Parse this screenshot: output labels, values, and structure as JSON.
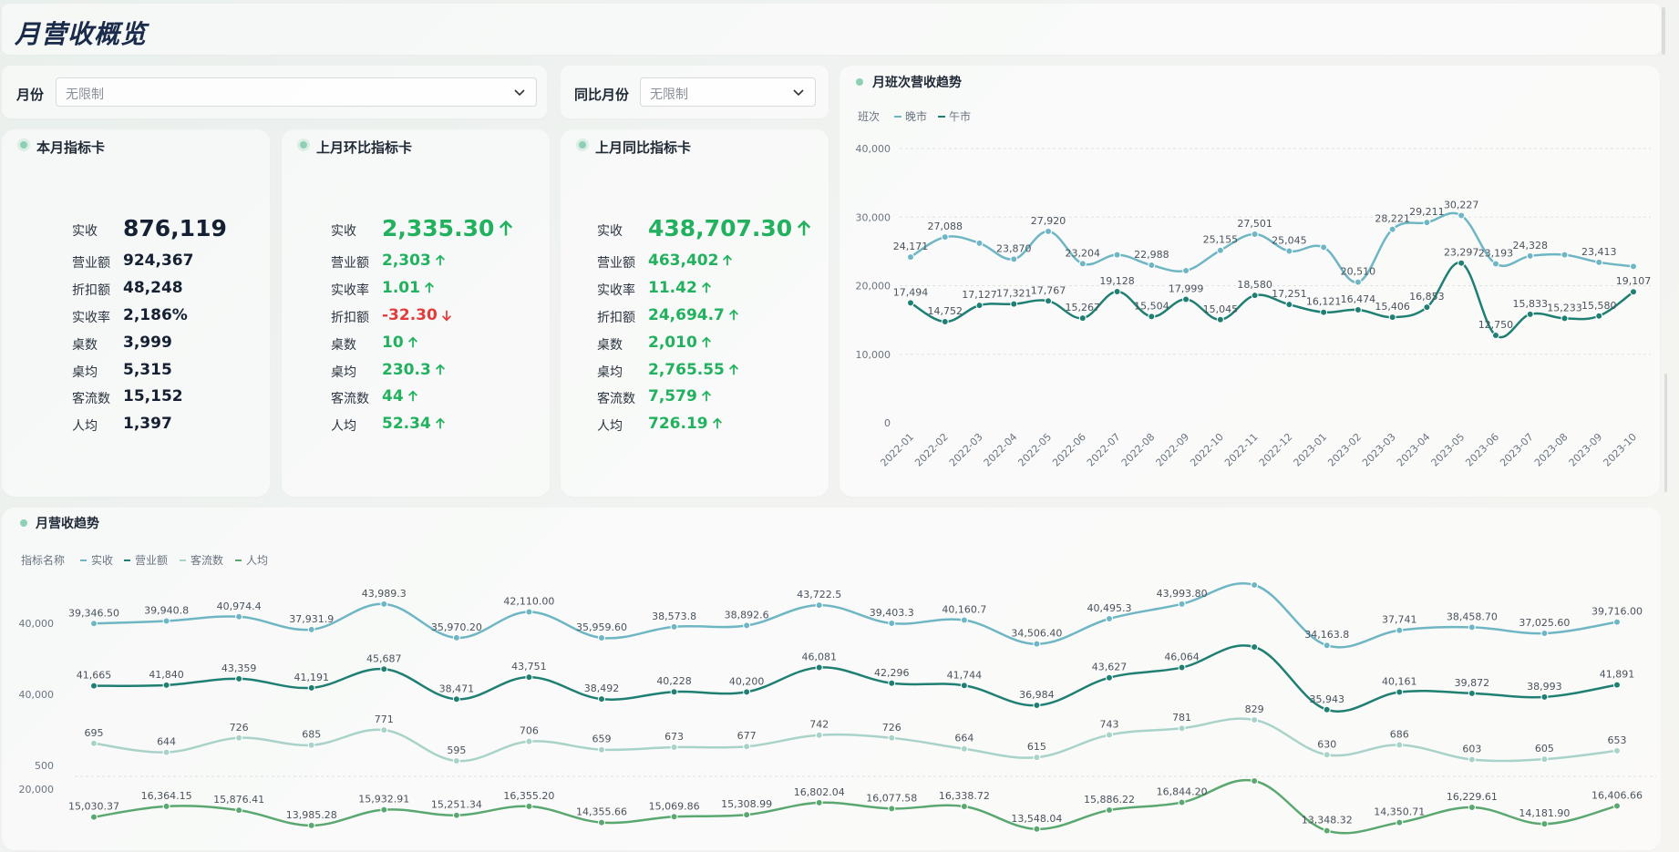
{
  "page": {
    "title": "月营收概览"
  },
  "filters": {
    "month_label": "月份",
    "month_value": "无限制",
    "yoy_month_label": "同比月份",
    "yoy_month_value": "无限制"
  },
  "cards": [
    {
      "title": "本月指标卡",
      "items": [
        {
          "label": "实收",
          "value": "876,119",
          "trend": "none"
        },
        {
          "label": "营业额",
          "value": "924,367",
          "trend": "none"
        },
        {
          "label": "折扣额",
          "value": "48,248",
          "trend": "none"
        },
        {
          "label": "实收率",
          "value": "2,186%",
          "trend": "none"
        },
        {
          "label": "桌数",
          "value": "3,999",
          "trend": "none"
        },
        {
          "label": "桌均",
          "value": "5,315",
          "trend": "none"
        },
        {
          "label": "客流数",
          "value": "15,152",
          "trend": "none"
        },
        {
          "label": "人均",
          "value": "1,397",
          "trend": "none"
        }
      ]
    },
    {
      "title": "上月环比指标卡",
      "items": [
        {
          "label": "实收",
          "value": "2,335.30",
          "trend": "up"
        },
        {
          "label": "营业额",
          "value": "2,303",
          "trend": "up"
        },
        {
          "label": "实收率",
          "value": "1.01",
          "trend": "up"
        },
        {
          "label": "折扣额",
          "value": "-32.30",
          "trend": "down"
        },
        {
          "label": "桌数",
          "value": "10",
          "trend": "up"
        },
        {
          "label": "桌均",
          "value": "230.3",
          "trend": "up"
        },
        {
          "label": "客流数",
          "value": "44",
          "trend": "up"
        },
        {
          "label": "人均",
          "value": "52.34",
          "trend": "up"
        }
      ]
    },
    {
      "title": "上月同比指标卡",
      "items": [
        {
          "label": "实收",
          "value": "438,707.30",
          "trend": "up"
        },
        {
          "label": "营业额",
          "value": "463,402",
          "trend": "up"
        },
        {
          "label": "实收率",
          "value": "11.42",
          "trend": "up"
        },
        {
          "label": "折扣额",
          "value": "24,694.7",
          "trend": "up"
        },
        {
          "label": "桌数",
          "value": "2,010",
          "trend": "up"
        },
        {
          "label": "桌均",
          "value": "2,765.55",
          "trend": "up"
        },
        {
          "label": "客流数",
          "value": "7,579",
          "trend": "up"
        },
        {
          "label": "人均",
          "value": "726.19",
          "trend": "up"
        }
      ]
    }
  ],
  "colors": {
    "evening": "#6fb6c4",
    "noon": "#1f7f72",
    "revenue": "#6fb6c4",
    "turnover": "#1f7f72",
    "traffic": "#a9d3c9",
    "per_capita": "#5aa870",
    "up": "#22b15f",
    "down": "#e23b3b"
  },
  "chart_data": [
    {
      "type": "line",
      "title": "月班次营收趋势",
      "legend_title": "班次",
      "categories": [
        "2022-01",
        "2022-02",
        "2022-03",
        "2022-04",
        "2022-05",
        "2022-06",
        "2022-07",
        "2022-08",
        "2022-09",
        "2022-10",
        "2022-11",
        "2022-12",
        "2023-01",
        "2023-02",
        "2023-03",
        "2023-04",
        "2023-05",
        "2023-06",
        "2023-07",
        "2023-08",
        "2023-09",
        "2023-10"
      ],
      "y_ticks": [
        "40,000",
        "30,000",
        "20,000",
        "10,000",
        "0"
      ],
      "ylim": [
        0,
        40000
      ],
      "series": [
        {
          "name": "晚市",
          "values": [
            24171,
            27088,
            26200,
            23870,
            27920,
            23204,
            24500,
            22988,
            22200,
            25155,
            27501,
            25045,
            25600,
            20510,
            28221,
            29211,
            30227,
            23193,
            24328,
            24500,
            23413,
            22800
          ],
          "labels": [
            "24,171",
            "27,088",
            "",
            "23,870",
            "27,920",
            "23,204",
            "",
            "22,988",
            "",
            "25,155",
            "27,501",
            "25,045",
            "",
            "20,510",
            "28,221",
            "29,211",
            "30,227",
            "23,193",
            "24,328",
            "",
            "23,413",
            ""
          ]
        },
        {
          "name": "午市",
          "values": [
            17494,
            14752,
            17127,
            17321,
            17767,
            15267,
            19128,
            15504,
            17999,
            15045,
            18580,
            17251,
            16121,
            16474,
            15406,
            16853,
            23297,
            12750,
            15833,
            15233,
            15580,
            19107
          ],
          "labels": [
            "17,494",
            "14,752",
            "17,127",
            "17,321",
            "17,767",
            "15,267",
            "19,128",
            "15,504",
            "17,999",
            "15,045",
            "18,580",
            "17,251",
            "16,121",
            "16,474",
            "15,406",
            "16,853",
            "23,297",
            "12,750",
            "15,833",
            "15,233",
            "15,580",
            "19,107"
          ]
        }
      ]
    },
    {
      "type": "line",
      "title": "月营收趋势",
      "legend_title": "指标名称",
      "categories": [
        "2022-01",
        "2022-02",
        "2022-03",
        "2022-04",
        "2022-05",
        "2022-06",
        "2022-07",
        "2022-08",
        "2022-09",
        "2022-10",
        "2022-11",
        "2022-12",
        "2023-01",
        "2023-02",
        "2023-03",
        "2023-04",
        "2023-05",
        "2023-06",
        "2023-07",
        "2023-08",
        "2023-09",
        "2023-10"
      ],
      "series": [
        {
          "name": "实收",
          "axis_tick": "40,000",
          "values": [
            39346.5,
            39940.8,
            40974.4,
            37931.9,
            43989.3,
            35970.2,
            42110.0,
            35959.6,
            38573.8,
            38892.6,
            43722.5,
            39403.3,
            40160.7,
            34506.4,
            40495.3,
            43993.8,
            48500,
            34163.8,
            37741,
            38458.7,
            37025.6,
            39716.0
          ],
          "labels": [
            "39,346.50",
            "39,940.8",
            "40,974.4",
            "37,931.9",
            "43,989.3",
            "35,970.20",
            "42,110.00",
            "35,959.60",
            "38,573.8",
            "38,892.6",
            "43,722.5",
            "39,403.3",
            "40,160.7",
            "34,506.40",
            "40,495.3",
            "43,993.80",
            "",
            "34,163.8",
            "37,741",
            "38,458.70",
            "37,025.60",
            "39,716.00"
          ]
        },
        {
          "name": "营业额",
          "axis_tick": "40,000",
          "values": [
            41665,
            41840,
            43359,
            41191,
            45687,
            38471,
            43751,
            38492,
            40228,
            40200,
            46081,
            42296,
            41744,
            36984,
            43627,
            46064,
            51000,
            35943,
            40161,
            39872,
            38993,
            41891
          ],
          "labels": [
            "41,665",
            "41,840",
            "43,359",
            "41,191",
            "45,687",
            "38,471",
            "43,751",
            "38,492",
            "40,228",
            "40,200",
            "46,081",
            "42,296",
            "41,744",
            "36,984",
            "43,627",
            "46,064",
            "",
            "35,943",
            "40,161",
            "39,872",
            "38,993",
            "41,891"
          ]
        },
        {
          "name": "客流数",
          "axis_tick": "500",
          "values": [
            695,
            644,
            726,
            685,
            771,
            595,
            706,
            659,
            673,
            677,
            742,
            726,
            664,
            615,
            743,
            781,
            829,
            630,
            686,
            603,
            605,
            653
          ],
          "labels": [
            "695",
            "644",
            "726",
            "685",
            "771",
            "595",
            "706",
            "659",
            "673",
            "677",
            "742",
            "726",
            "664",
            "615",
            "743",
            "781",
            "829",
            "630",
            "686",
            "603",
            "605",
            "653"
          ]
        },
        {
          "name": "人均",
          "axis_tick": "20,000",
          "values": [
            15030.37,
            16364.15,
            15876.41,
            13985.28,
            15932.91,
            15251.34,
            16355.2,
            14355.66,
            15069.86,
            15308.99,
            16802.04,
            16077.58,
            16338.72,
            13548.04,
            15886.22,
            16844.2,
            19500,
            13348.32,
            14350.71,
            16229.61,
            14181.9,
            16406.66
          ],
          "labels": [
            "15,030.37",
            "16,364.15",
            "15,876.41",
            "13,985.28",
            "15,932.91",
            "15,251.34",
            "16,355.20",
            "14,355.66",
            "15,069.86",
            "15,308.99",
            "16,802.04",
            "16,077.58",
            "16,338.72",
            "13,548.04",
            "15,886.22",
            "16,844.20",
            "",
            "13,348.32",
            "14,350.71",
            "16,229.61",
            "14,181.90",
            "16,406.66"
          ]
        }
      ]
    }
  ]
}
